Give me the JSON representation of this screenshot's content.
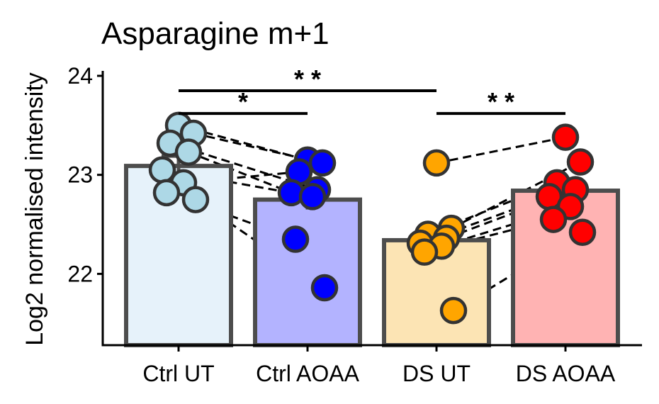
{
  "chart_data": {
    "type": "bar",
    "title": "Asparagine m+1",
    "xlabel": "",
    "ylabel": "Log2 normalised intensity",
    "ylim": [
      21.28,
      24.05
    ],
    "yticks": [
      22,
      23,
      24
    ],
    "grid": false,
    "legend": "none",
    "categories": [
      "Ctrl UT",
      "Ctrl AOAA",
      "DS UT",
      "DS AOAA"
    ],
    "values": [
      23.09,
      22.75,
      22.34,
      22.84
    ],
    "errors": [
      0.1,
      0.1,
      0.06,
      0.08
    ],
    "bar_fill_colors": [
      "#e6f2fa",
      "#b3b3ff",
      "#fce4b4",
      "#ffb3b3"
    ],
    "point_colors": [
      "#add8e6",
      "#0000ff",
      "#ffa500",
      "#ff0000"
    ],
    "outline_color": "#4d4d4d",
    "points": [
      [
        23.5,
        23.42,
        23.32,
        23.23,
        23.05,
        22.92,
        22.82,
        22.75
      ],
      [
        23.15,
        23.12,
        23.03,
        22.85,
        22.82,
        22.78,
        22.35,
        21.86
      ],
      [
        23.12,
        22.46,
        22.4,
        22.36,
        22.31,
        22.28,
        22.22,
        21.63
      ],
      [
        23.38,
        23.13,
        22.92,
        22.85,
        22.78,
        22.68,
        22.55,
        22.42
      ]
    ],
    "pairs": [
      [
        0,
        1,
        23.5,
        23.15
      ],
      [
        0,
        1,
        23.42,
        23.12
      ],
      [
        0,
        1,
        23.32,
        22.85
      ],
      [
        0,
        1,
        23.23,
        22.82
      ],
      [
        0,
        1,
        23.05,
        22.78
      ],
      [
        0,
        1,
        22.92,
        23.03
      ],
      [
        0,
        1,
        22.82,
        22.35
      ],
      [
        0,
        1,
        22.75,
        21.86
      ],
      [
        2,
        3,
        23.12,
        23.38
      ],
      [
        2,
        3,
        22.46,
        23.13
      ],
      [
        2,
        3,
        22.4,
        22.92
      ],
      [
        2,
        3,
        22.36,
        22.85
      ],
      [
        2,
        3,
        22.31,
        22.78
      ],
      [
        2,
        3,
        22.28,
        22.68
      ],
      [
        2,
        3,
        22.22,
        22.55
      ],
      [
        2,
        3,
        21.63,
        22.42
      ]
    ],
    "significance": [
      {
        "from": 0,
        "to": 2,
        "y": 23.85,
        "label": "* *"
      },
      {
        "from": 0,
        "to": 1,
        "y": 23.62,
        "label": "*"
      },
      {
        "from": 2,
        "to": 3,
        "y": 23.62,
        "label": "* *"
      }
    ]
  }
}
